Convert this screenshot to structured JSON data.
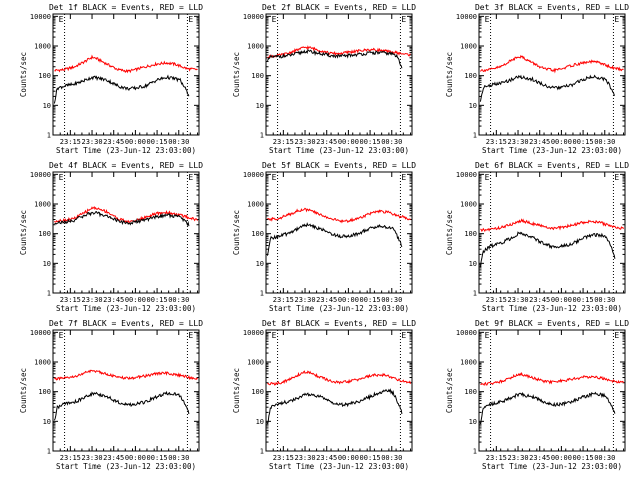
{
  "colors": {
    "events": "#000000",
    "lld": "#ff0000",
    "axis": "#000000",
    "background": "#ffffff"
  },
  "common": {
    "ylabel": "Counts/sec",
    "xlabel": "Start Time (23-Jun-12 23:03:00)",
    "x_tick_labels": [
      "23:15",
      "23:30",
      "23:45",
      "00:00",
      "00:15",
      "00:30"
    ],
    "y_tick_labels": [
      "1",
      "10",
      "100",
      "1000",
      "10000"
    ],
    "y_scale": "log",
    "ylim": [
      1,
      12000
    ],
    "xlim_minutes": [
      0,
      101
    ],
    "x_tick_minutes": [
      12,
      27,
      42,
      57,
      72,
      87
    ],
    "marker_minutes": [
      8,
      93
    ],
    "marker_labels": [
      "E",
      "E"
    ]
  },
  "chart_data": [
    {
      "type": "line",
      "title": "Det 1f BLACK = Events, RED = LLD",
      "series": [
        {
          "key": "lld",
          "x": [
            1,
            8,
            15,
            22,
            27,
            30,
            37,
            45,
            52,
            57,
            64,
            72,
            79,
            85,
            88,
            93,
            100
          ],
          "y": [
            150,
            160,
            200,
            300,
            420,
            380,
            250,
            160,
            140,
            160,
            200,
            250,
            270,
            240,
            210,
            170,
            160
          ]
        },
        {
          "key": "events",
          "x": [
            1,
            3,
            8,
            15,
            22,
            27,
            30,
            37,
            45,
            52,
            57,
            64,
            72,
            79,
            85,
            88,
            91,
            94
          ],
          "y": [
            13,
            38,
            45,
            52,
            70,
            88,
            85,
            72,
            45,
            36,
            38,
            45,
            72,
            88,
            78,
            70,
            40,
            22
          ]
        }
      ]
    },
    {
      "type": "line",
      "title": "Det 2f BLACK = Events, RED = LLD",
      "series": [
        {
          "key": "lld",
          "x": [
            1,
            8,
            15,
            22,
            27,
            30,
            37,
            45,
            52,
            57,
            64,
            72,
            79,
            85,
            88,
            93,
            100
          ],
          "y": [
            450,
            470,
            560,
            750,
            900,
            880,
            720,
            560,
            560,
            620,
            680,
            760,
            720,
            640,
            620,
            560,
            500
          ]
        },
        {
          "key": "events",
          "x": [
            1,
            3,
            8,
            15,
            22,
            27,
            30,
            37,
            45,
            52,
            57,
            64,
            72,
            79,
            85,
            88,
            91,
            94
          ],
          "y": [
            300,
            420,
            440,
            470,
            560,
            660,
            650,
            560,
            470,
            450,
            480,
            520,
            580,
            600,
            560,
            540,
            420,
            200
          ]
        }
      ]
    },
    {
      "type": "line",
      "title": "Det 3f BLACK = Events, RED = LLD",
      "series": [
        {
          "key": "lld",
          "x": [
            1,
            8,
            15,
            22,
            27,
            30,
            37,
            45,
            52,
            57,
            64,
            72,
            79,
            85,
            88,
            93,
            100
          ],
          "y": [
            150,
            160,
            200,
            320,
            450,
            420,
            270,
            170,
            150,
            170,
            220,
            270,
            300,
            260,
            220,
            180,
            160
          ]
        },
        {
          "key": "events",
          "x": [
            1,
            3,
            8,
            15,
            22,
            27,
            30,
            37,
            45,
            52,
            57,
            64,
            72,
            79,
            85,
            88,
            91,
            94
          ],
          "y": [
            14,
            40,
            48,
            55,
            72,
            92,
            88,
            75,
            48,
            38,
            40,
            48,
            75,
            92,
            82,
            75,
            40,
            22
          ]
        }
      ]
    },
    {
      "type": "line",
      "title": "Det 4f BLACK = Events, RED = LLD",
      "series": [
        {
          "key": "lld",
          "x": [
            1,
            8,
            15,
            22,
            27,
            30,
            37,
            45,
            52,
            57,
            64,
            72,
            79,
            85,
            88,
            93,
            100
          ],
          "y": [
            270,
            280,
            330,
            520,
            740,
            720,
            560,
            320,
            250,
            270,
            360,
            480,
            520,
            460,
            420,
            360,
            290
          ]
        },
        {
          "key": "events",
          "x": [
            1,
            3,
            8,
            15,
            22,
            27,
            30,
            37,
            45,
            52,
            57,
            64,
            72,
            79,
            85,
            88,
            91,
            94
          ],
          "y": [
            230,
            240,
            240,
            290,
            420,
            500,
            490,
            400,
            270,
            220,
            250,
            290,
            380,
            420,
            390,
            370,
            280,
            200
          ]
        }
      ]
    },
    {
      "type": "line",
      "title": "Det 5f BLACK = Events, RED = LLD",
      "series": [
        {
          "key": "lld",
          "x": [
            1,
            8,
            15,
            22,
            27,
            30,
            37,
            45,
            52,
            57,
            64,
            72,
            79,
            85,
            88,
            93,
            100
          ],
          "y": [
            300,
            320,
            420,
            600,
            650,
            620,
            450,
            320,
            260,
            270,
            330,
            480,
            560,
            520,
            450,
            380,
            310
          ]
        },
        {
          "key": "events",
          "x": [
            1,
            3,
            8,
            15,
            22,
            27,
            30,
            37,
            45,
            52,
            57,
            64,
            72,
            79,
            85,
            88,
            91,
            94
          ],
          "y": [
            16,
            70,
            80,
            100,
            150,
            200,
            190,
            150,
            100,
            80,
            85,
            100,
            150,
            180,
            160,
            150,
            80,
            40
          ]
        }
      ]
    },
    {
      "type": "line",
      "title": "Det 6f BLACK = Events, RED = LLD",
      "series": [
        {
          "key": "lld",
          "x": [
            1,
            8,
            15,
            22,
            27,
            30,
            37,
            45,
            52,
            57,
            64,
            72,
            79,
            85,
            88,
            93,
            100
          ],
          "y": [
            130,
            140,
            160,
            200,
            260,
            270,
            220,
            170,
            150,
            160,
            190,
            240,
            260,
            230,
            200,
            170,
            150
          ]
        },
        {
          "key": "events",
          "x": [
            1,
            3,
            8,
            15,
            22,
            27,
            30,
            37,
            45,
            52,
            57,
            64,
            72,
            79,
            85,
            88,
            91,
            94
          ],
          "y": [
            8,
            25,
            38,
            48,
            70,
            100,
            95,
            75,
            45,
            35,
            38,
            45,
            70,
            95,
            85,
            75,
            40,
            15
          ]
        }
      ]
    },
    {
      "type": "line",
      "title": "Det 7f BLACK = Events, RED = LLD",
      "series": [
        {
          "key": "lld",
          "x": [
            1,
            8,
            15,
            22,
            27,
            30,
            37,
            45,
            52,
            57,
            64,
            72,
            79,
            85,
            88,
            93,
            100
          ],
          "y": [
            270,
            280,
            320,
            430,
            500,
            490,
            400,
            300,
            280,
            300,
            340,
            410,
            420,
            380,
            350,
            310,
            270
          ]
        },
        {
          "key": "events",
          "x": [
            1,
            3,
            8,
            15,
            22,
            27,
            30,
            37,
            45,
            52,
            57,
            64,
            72,
            79,
            85,
            88,
            91,
            94
          ],
          "y": [
            10,
            30,
            38,
            45,
            65,
            85,
            82,
            70,
            45,
            36,
            38,
            45,
            68,
            88,
            80,
            72,
            40,
            18
          ]
        }
      ]
    },
    {
      "type": "line",
      "title": "Det 8f BLACK = Events, RED = LLD",
      "series": [
        {
          "key": "lld",
          "x": [
            1,
            8,
            15,
            22,
            27,
            30,
            37,
            45,
            52,
            57,
            64,
            72,
            79,
            85,
            88,
            93,
            100
          ],
          "y": [
            180,
            190,
            240,
            360,
            460,
            440,
            320,
            220,
            200,
            220,
            260,
            340,
            380,
            330,
            290,
            240,
            200
          ]
        },
        {
          "key": "events",
          "x": [
            1,
            3,
            8,
            15,
            22,
            27,
            30,
            37,
            45,
            52,
            57,
            64,
            72,
            79,
            85,
            88,
            91,
            94
          ],
          "y": [
            8,
            30,
            40,
            45,
            60,
            80,
            78,
            68,
            45,
            36,
            38,
            45,
            68,
            95,
            110,
            90,
            45,
            20
          ]
        }
      ]
    },
    {
      "type": "line",
      "title": "Det 9f BLACK = Events, RED = LLD",
      "series": [
        {
          "key": "lld",
          "x": [
            1,
            8,
            15,
            22,
            27,
            30,
            37,
            45,
            52,
            57,
            64,
            72,
            79,
            85,
            88,
            93,
            100
          ],
          "y": [
            180,
            190,
            220,
            300,
            390,
            380,
            300,
            220,
            210,
            230,
            260,
            310,
            320,
            290,
            260,
            230,
            200
          ]
        },
        {
          "key": "events",
          "x": [
            1,
            3,
            8,
            15,
            22,
            27,
            30,
            37,
            45,
            52,
            57,
            64,
            72,
            79,
            85,
            88,
            91,
            94
          ],
          "y": [
            9,
            30,
            38,
            45,
            62,
            80,
            78,
            68,
            45,
            36,
            38,
            45,
            66,
            85,
            78,
            72,
            40,
            18
          ]
        }
      ]
    }
  ]
}
